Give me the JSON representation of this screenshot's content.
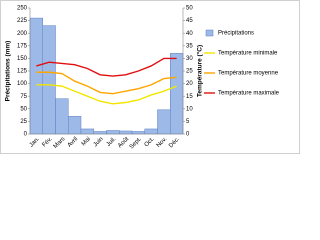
{
  "chart_data": {
    "type": "bar_line",
    "y_label": "Précipitations (mm)",
    "y2_label": "Température (°C)",
    "categories": [
      "Jan.",
      "Fév.",
      "Mars",
      "Avril",
      "Mai",
      "Juin",
      "Juil.",
      "Août",
      "Sept.",
      "Oct.",
      "Nov.",
      "Déc."
    ],
    "series": [
      {
        "name": "Précipitations",
        "color": "#9db9e8",
        "type": "bar",
        "values": [
          230,
          215,
          70,
          35,
          10,
          5,
          7,
          6,
          5,
          10,
          48,
          160
        ]
      },
      {
        "name": "Température minimale",
        "color": "#f2e600",
        "type": "line",
        "axis": "y2",
        "values": [
          19.5,
          19.5,
          19,
          17,
          15,
          13,
          12,
          12.5,
          13.5,
          15.5,
          17,
          19
        ]
      },
      {
        "name": "Température moyenne",
        "color": "#ffa500",
        "type": "line",
        "axis": "y2",
        "values": [
          24.5,
          24.5,
          24,
          21,
          19,
          16.5,
          16,
          17,
          18,
          19.5,
          22,
          22.5
        ]
      },
      {
        "name": "Température maximale",
        "color": "#e01010",
        "type": "line",
        "axis": "y2",
        "values": [
          27,
          28.5,
          28,
          27.5,
          26,
          23.5,
          23,
          23.5,
          25,
          27,
          30,
          30
        ]
      }
    ],
    "ylim": [
      0,
      250
    ],
    "yticks": [
      0,
      25,
      50,
      75,
      100,
      125,
      150,
      175,
      200,
      225,
      250
    ],
    "y2lim": [
      0,
      50
    ],
    "y2ticks": [
      0,
      5,
      10,
      15,
      20,
      25,
      30,
      35,
      40,
      45,
      50
    ],
    "legend": "right"
  }
}
